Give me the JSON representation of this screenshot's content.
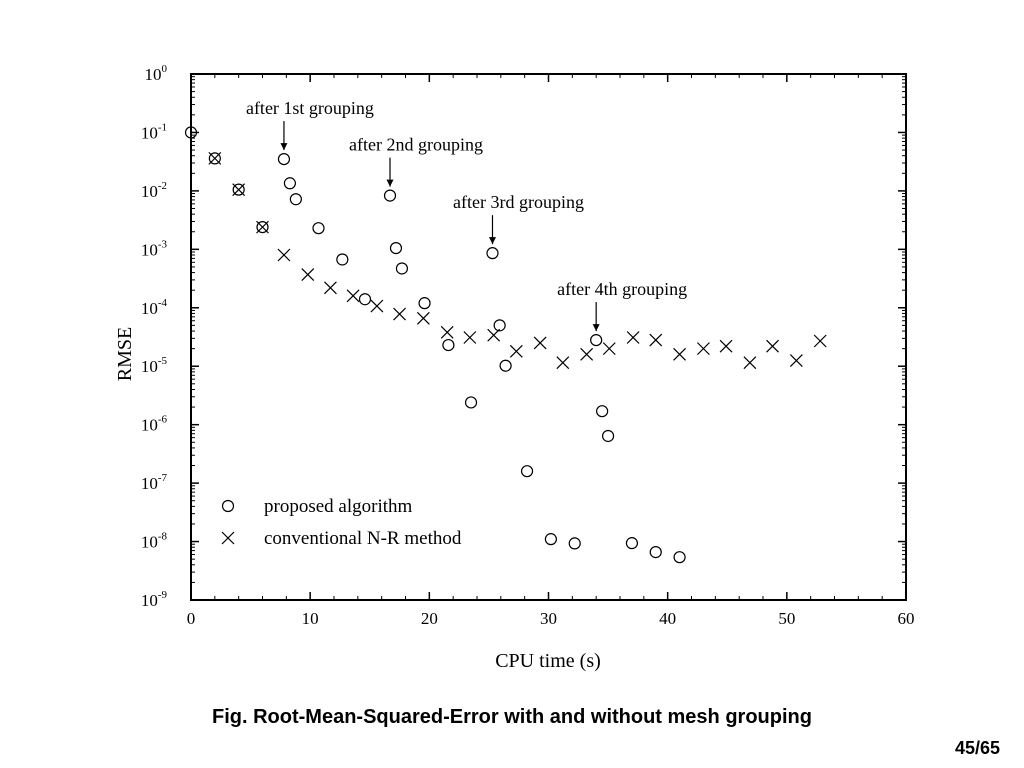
{
  "chart_data": {
    "type": "scatter",
    "xlabel": "CPU time (s)",
    "ylabel": "RMSE",
    "xlim": [
      0,
      60
    ],
    "ylim": [
      1e-09,
      1
    ],
    "yscale": "log",
    "x_ticks": [
      "0",
      "10",
      "20",
      "30",
      "40",
      "50",
      "60"
    ],
    "y_tick_exponents": [
      "0",
      "-1",
      "-2",
      "-3",
      "-4",
      "-5",
      "-6",
      "-7",
      "-8",
      "-9"
    ],
    "y_tick_base": "10",
    "legend_position": "bottom-left",
    "series": [
      {
        "name": "proposed algorithm",
        "marker": "circle",
        "points": [
          [
            0,
            0.1
          ],
          [
            2,
            0.036
          ],
          [
            4,
            0.0105
          ],
          [
            6,
            0.0024
          ],
          [
            7.8,
            0.035
          ],
          [
            8.3,
            0.0135
          ],
          [
            8.8,
            0.0072
          ],
          [
            10.7,
            0.0023
          ],
          [
            12.7,
            0.00067
          ],
          [
            14.6,
            0.00014
          ],
          [
            16.7,
            0.0083
          ],
          [
            17.2,
            0.00105
          ],
          [
            17.7,
            0.00047
          ],
          [
            19.6,
            0.00012
          ],
          [
            21.6,
            2.3e-05
          ],
          [
            23.5,
            2.4e-06
          ],
          [
            25.3,
            0.00086
          ],
          [
            25.9,
            5e-05
          ],
          [
            26.4,
            1.02e-05
          ],
          [
            28.2,
            1.6e-07
          ],
          [
            30.2,
            1.1e-08
          ],
          [
            32.2,
            9.3e-09
          ],
          [
            34.0,
            2.8e-05
          ],
          [
            34.5,
            1.7e-06
          ],
          [
            35.0,
            6.4e-07
          ],
          [
            37.0,
            9.4e-09
          ],
          [
            39.0,
            6.6e-09
          ],
          [
            41.0,
            5.4e-09
          ]
        ]
      },
      {
        "name": "conventional N-R method",
        "marker": "cross",
        "points": [
          [
            2,
            0.036
          ],
          [
            4,
            0.0105
          ],
          [
            6,
            0.0024
          ],
          [
            7.8,
            0.0008
          ],
          [
            9.8,
            0.00037
          ],
          [
            11.7,
            0.00022
          ],
          [
            13.6,
            0.00016
          ],
          [
            15.6,
            0.000107
          ],
          [
            17.5,
            7.8e-05
          ],
          [
            19.5,
            6.6e-05
          ],
          [
            21.5,
            3.8e-05
          ],
          [
            23.4,
            3.1e-05
          ],
          [
            25.4,
            3.4e-05
          ],
          [
            27.3,
            1.8e-05
          ],
          [
            29.3,
            2.5e-05
          ],
          [
            31.2,
            1.15e-05
          ],
          [
            33.2,
            1.6e-05
          ],
          [
            35.1,
            2e-05
          ],
          [
            37.1,
            3.1e-05
          ],
          [
            39.0,
            2.8e-05
          ],
          [
            41.0,
            1.6e-05
          ],
          [
            43.0,
            2e-05
          ],
          [
            44.9,
            2.2e-05
          ],
          [
            46.9,
            1.15e-05
          ],
          [
            48.8,
            2.2e-05
          ],
          [
            50.8,
            1.25e-05
          ],
          [
            52.8,
            2.7e-05
          ]
        ]
      }
    ],
    "annotations": [
      {
        "text": "after 1st grouping",
        "x": 7.8,
        "y": 0.035
      },
      {
        "text": "after 2nd grouping",
        "x": 16.7,
        "y": 0.0083
      },
      {
        "text": "after 3rd grouping",
        "x": 25.3,
        "y": 0.00086
      },
      {
        "text": "after 4th grouping",
        "x": 34.0,
        "y": 2.8e-05
      }
    ]
  },
  "caption": "Fig. Root-Mean-Squared-Error with and without mesh grouping",
  "page_number": "45/65"
}
